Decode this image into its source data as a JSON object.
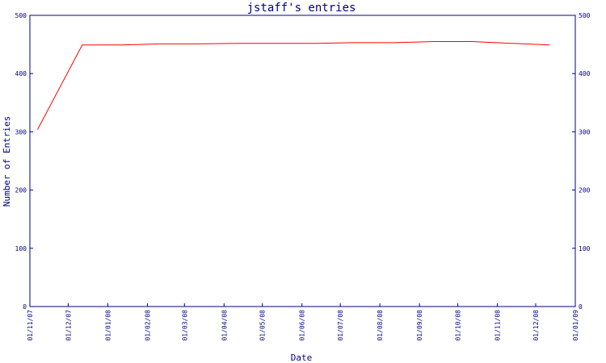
{
  "chart_data": {
    "type": "line",
    "title": "jstaff's entries",
    "xlabel": "Date",
    "ylabel": "Number of Entries",
    "ylim": [
      0,
      500
    ],
    "yticks": [
      0,
      100,
      200,
      300,
      400,
      500
    ],
    "x_start": "01/11/07",
    "x_end": "01/01/09",
    "xtick_labels": [
      "01/11/07",
      "01/12/07",
      "01/01/08",
      "01/02/08",
      "01/03/08",
      "01/04/08",
      "01/05/08",
      "01/06/08",
      "01/07/08",
      "01/08/08",
      "01/09/08",
      "01/10/08",
      "01/11/08",
      "01/12/08",
      "01/01/09"
    ],
    "series": [
      {
        "color": "#ff0000",
        "x": [
          "2007-11-07",
          "2007-12-12",
          "2008-01-12",
          "2008-02-12",
          "2008-03-12",
          "2008-04-12",
          "2008-05-12",
          "2008-06-12",
          "2008-07-12",
          "2008-08-12",
          "2008-09-12",
          "2008-10-12",
          "2008-11-12",
          "2008-12-12"
        ],
        "values": [
          304,
          449,
          449,
          451,
          451,
          452,
          452,
          452,
          453,
          453,
          455,
          455,
          452,
          449
        ]
      }
    ],
    "right_axis": true,
    "grid": false,
    "colors": {
      "axis": "#000080",
      "line": "#ff0000",
      "background": "#ffffff"
    }
  }
}
